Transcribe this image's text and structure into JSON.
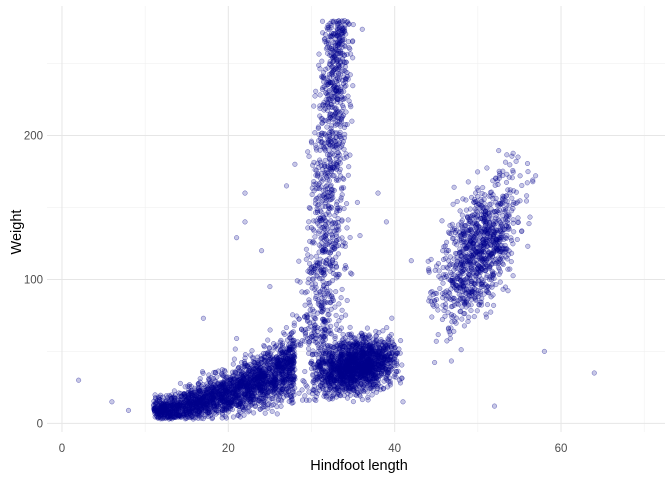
{
  "chart_data": {
    "type": "scatter",
    "title": "",
    "xlabel": "Hindfoot length",
    "ylabel": "Weight",
    "xlim": [
      -1.8,
      72.5
    ],
    "ylim": [
      -6,
      290
    ],
    "x_ticks": [
      0,
      20,
      40,
      60
    ],
    "y_ticks": [
      0,
      100,
      200
    ],
    "x_minor_ticks": [
      10,
      30,
      50,
      70
    ],
    "y_minor_ticks": [
      50,
      150,
      250
    ],
    "grid": true,
    "legend": "none",
    "point_color": "#00008B",
    "point_alpha": 0.22,
    "clusters": [
      {
        "label": "small-dense",
        "n": 2200,
        "x_range": [
          11,
          28
        ],
        "y_at_x_start": 8,
        "y_at_x_end": 40,
        "y_spread": 7
      },
      {
        "label": "tall-column",
        "n": 1100,
        "x_range": [
          29,
          37
        ],
        "y_range": [
          15,
          280
        ]
      },
      {
        "label": "blob-40",
        "n": 1600,
        "x_center": 35.5,
        "y_center": 40,
        "x_sd": 2.5,
        "y_sd": 9
      },
      {
        "label": "right-cluster",
        "n": 1000,
        "x_range": [
          44,
          57
        ],
        "y_range": [
          40,
          190
        ]
      },
      {
        "label": "outliers",
        "points": [
          [
            2,
            30
          ],
          [
            6,
            15
          ],
          [
            8,
            9
          ],
          [
            17,
            73
          ],
          [
            21,
            59
          ],
          [
            21,
            129
          ],
          [
            22,
            160
          ],
          [
            22,
            140
          ],
          [
            24,
            120
          ],
          [
            25,
            95
          ],
          [
            27,
            165
          ],
          [
            28,
            180
          ],
          [
            30,
            195
          ],
          [
            32,
            230
          ],
          [
            38,
            160
          ],
          [
            39,
            140
          ],
          [
            42,
            113
          ],
          [
            41,
            15
          ],
          [
            45,
            57
          ],
          [
            52,
            12
          ],
          [
            56,
            123
          ],
          [
            58,
            50
          ],
          [
            64,
            35
          ]
        ]
      }
    ]
  }
}
